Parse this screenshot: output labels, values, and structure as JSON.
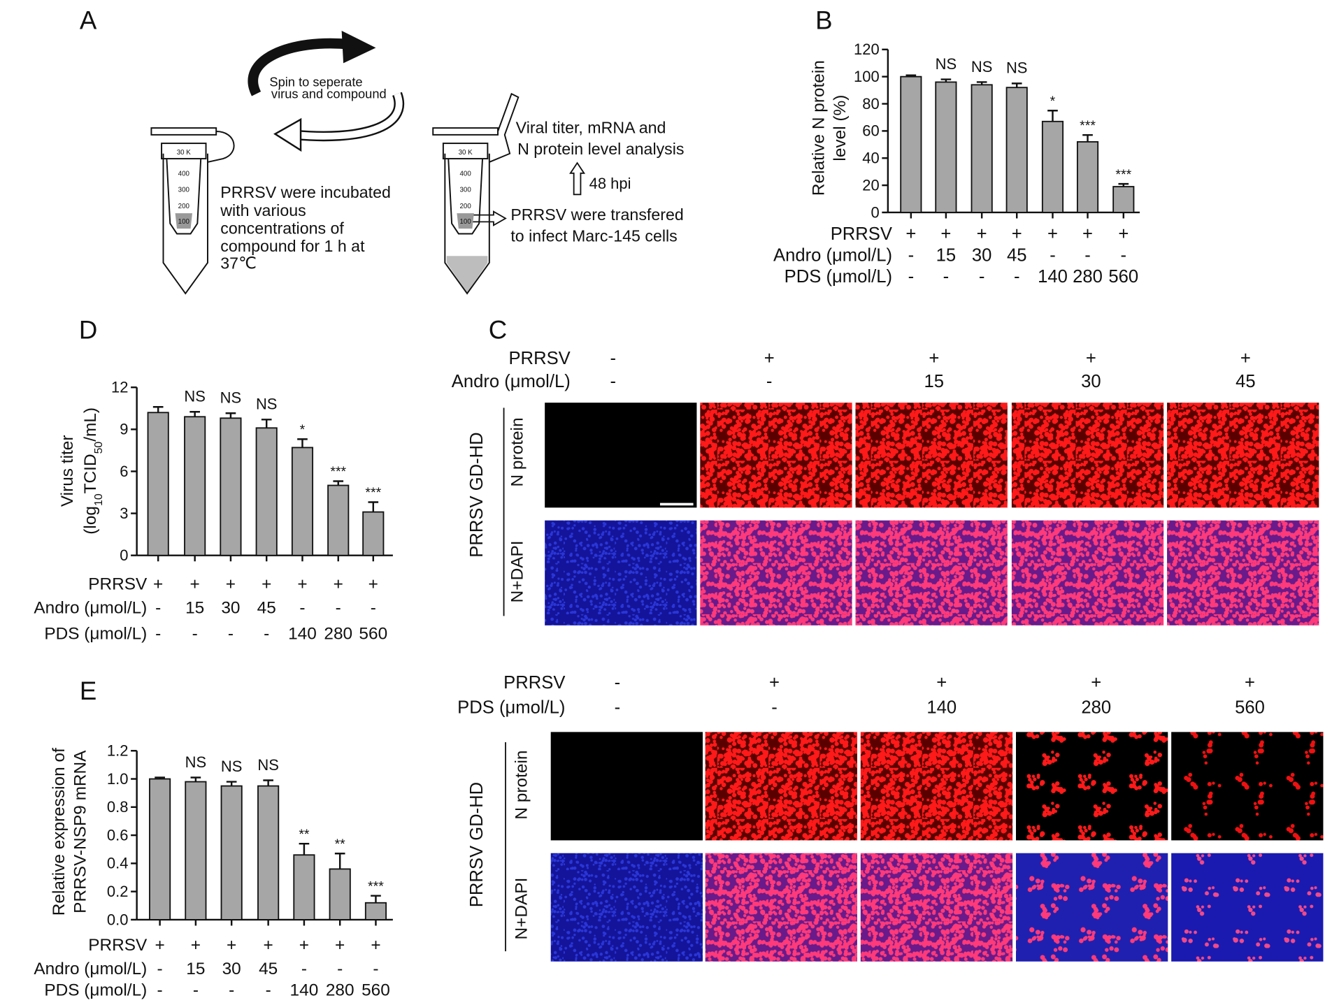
{
  "diagram": {
    "panel": "A",
    "spin_text": [
      "Spin to seperate",
      "virus and compound"
    ],
    "incubation_text": [
      "PRRSV were incubated",
      "with various",
      "concentrations of",
      "compound for 1 h at",
      "37℃"
    ],
    "analysis_text": [
      "Viral titer, mRNA and",
      "N protein level analysis"
    ],
    "time_text": "48 hpi",
    "transfer_text": [
      "PRRSV were transfered",
      "to infect Marc-145 cells"
    ],
    "tubes": [
      {
        "labels": [
          "30 K",
          "400",
          "300",
          "200",
          "100"
        ]
      },
      {
        "labels": [
          "30 K",
          "400",
          "300",
          "200",
          "100"
        ]
      }
    ]
  },
  "chart_data": [
    {
      "type": "bar",
      "panel": "B",
      "ylabel": [
        "Relative N protein",
        "level (%)"
      ],
      "values": [
        100,
        96,
        94,
        92,
        67,
        52,
        19
      ],
      "errors": [
        1,
        2,
        2,
        3,
        8,
        5,
        2
      ],
      "annotations": [
        null,
        "NS",
        "NS",
        "NS",
        "*",
        "***",
        "***"
      ],
      "ylim": [
        0,
        120
      ],
      "yticks": [
        0,
        20,
        40,
        60,
        80,
        100,
        120
      ],
      "color": "#a6a6a6",
      "conditions": [
        {
          "label": "PRRSV",
          "values": [
            "+",
            "+",
            "+",
            "+",
            "+",
            "+",
            "+"
          ]
        },
        {
          "label": "Andro (μmol/L)",
          "values": [
            "-",
            "15",
            "30",
            "45",
            "-",
            "-",
            "-"
          ]
        },
        {
          "label": "PDS (μmol/L)",
          "values": [
            "-",
            "-",
            "-",
            "-",
            "140",
            "280",
            "560"
          ]
        }
      ]
    },
    {
      "type": "bar",
      "panel": "D",
      "ylabel": [
        "Virus titer",
        [
          {
            "text": "(log"
          },
          {
            "text": "10",
            "sub": true
          },
          {
            "text": "TCID"
          },
          {
            "text": "50",
            "sub": true
          },
          {
            "text": "/mL)"
          }
        ]
      ],
      "values": [
        10.2,
        9.9,
        9.8,
        9.1,
        7.7,
        5.0,
        3.1
      ],
      "errors": [
        0.4,
        0.35,
        0.35,
        0.6,
        0.6,
        0.3,
        0.7
      ],
      "annotations": [
        null,
        "NS",
        "NS",
        "NS",
        "*",
        "***",
        "***"
      ],
      "ylim": [
        0,
        12
      ],
      "yticks": [
        0,
        3,
        6,
        9,
        12
      ],
      "color": "#a6a6a6",
      "conditions": [
        {
          "label": "PRRSV",
          "values": [
            "+",
            "+",
            "+",
            "+",
            "+",
            "+",
            "+"
          ]
        },
        {
          "label": "Andro (μmol/L)",
          "values": [
            "-",
            "15",
            "30",
            "45",
            "-",
            "-",
            "-"
          ]
        },
        {
          "label": "PDS (μmol/L)",
          "values": [
            "-",
            "-",
            "-",
            "-",
            "140",
            "280",
            "560"
          ]
        }
      ]
    },
    {
      "type": "bar",
      "panel": "E",
      "ylabel": [
        "Relative expression of",
        "PRRSV-NSP9 mRNA"
      ],
      "values": [
        1.0,
        0.98,
        0.95,
        0.95,
        0.46,
        0.36,
        0.12
      ],
      "errors": [
        0.01,
        0.03,
        0.03,
        0.04,
        0.08,
        0.11,
        0.05
      ],
      "annotations": [
        null,
        "NS",
        "NS",
        "NS",
        "**",
        "**",
        "***"
      ],
      "ylim": [
        0,
        1.2
      ],
      "yticks": [
        {
          "value": 0,
          "label": "0.0"
        },
        0.2,
        0.4,
        0.6,
        0.8,
        {
          "value": 1,
          "label": "1.0"
        },
        1.2
      ],
      "color": "#a6a6a6",
      "conditions": [
        {
          "label": "PRRSV",
          "values": [
            "+",
            "+",
            "+",
            "+",
            "+",
            "+",
            "+"
          ]
        },
        {
          "label": "Andro (μmol/L)",
          "values": [
            "-",
            "15",
            "30",
            "45",
            "-",
            "-",
            "-"
          ]
        },
        {
          "label": "PDS (μmol/L)",
          "values": [
            "-",
            "-",
            "-",
            "-",
            "140",
            "280",
            "560"
          ]
        }
      ]
    }
  ],
  "micrographs": {
    "panel": "C",
    "blocks": [
      {
        "side_label": "PRRSV GD-HD",
        "row_labels": [
          "N protein",
          "N+DAPI"
        ],
        "conditions": [
          {
            "label": "PRRSV",
            "values": [
              "-",
              "+",
              "+",
              "+",
              "+"
            ]
          },
          {
            "label": "Andro (μmol/L)",
            "values": [
              "-",
              "-",
              "15",
              "30",
              "45"
            ]
          }
        ]
      },
      {
        "side_label": "PRRSV GD-HD",
        "row_labels": [
          "N protein",
          "N+DAPI"
        ],
        "conditions": [
          {
            "label": "PRRSV",
            "values": [
              "-",
              "+",
              "+",
              "+",
              "+"
            ]
          },
          {
            "label": "PDS (μmol/L)",
            "values": [
              "-",
              "-",
              "140",
              "280",
              "560"
            ]
          }
        ]
      }
    ]
  }
}
